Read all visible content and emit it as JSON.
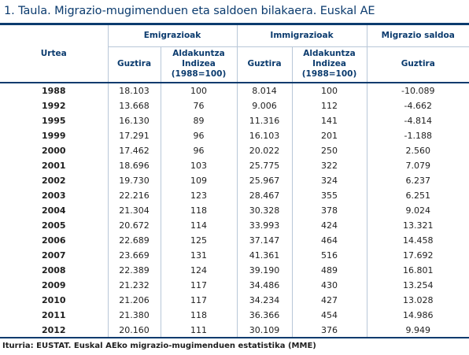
{
  "title": "1. Taula. Migrazio-mugimenduen eta saldoen bilakaera. Euskal AE",
  "header": {
    "urtea": "Urtea",
    "emigrazioak": "Emigrazioak",
    "immigrazioak": "Immigrazioak",
    "saldoa": "Migrazio saldoa",
    "guztira": "Guztira",
    "aldakuntza_1": "Aldakuntza",
    "aldakuntza_2": "Indizea",
    "aldakuntza_3": "(1988=100)"
  },
  "rows": [
    {
      "year": "1988",
      "emig": "18.103",
      "emig_idx": "100",
      "immig": "8.014",
      "immig_idx": "100",
      "saldo": "-10.089"
    },
    {
      "year": "1992",
      "emig": "13.668",
      "emig_idx": "76",
      "immig": "9.006",
      "immig_idx": "112",
      "saldo": "-4.662"
    },
    {
      "year": "1995",
      "emig": "16.130",
      "emig_idx": "89",
      "immig": "11.316",
      "immig_idx": "141",
      "saldo": "-4.814"
    },
    {
      "year": "1999",
      "emig": "17.291",
      "emig_idx": "96",
      "immig": "16.103",
      "immig_idx": "201",
      "saldo": "-1.188"
    },
    {
      "year": "2000",
      "emig": "17.462",
      "emig_idx": "96",
      "immig": "20.022",
      "immig_idx": "250",
      "saldo": "2.560"
    },
    {
      "year": "2001",
      "emig": "18.696",
      "emig_idx": "103",
      "immig": "25.775",
      "immig_idx": "322",
      "saldo": "7.079"
    },
    {
      "year": "2002",
      "emig": "19.730",
      "emig_idx": "109",
      "immig": "25.967",
      "immig_idx": "324",
      "saldo": "6.237"
    },
    {
      "year": "2003",
      "emig": "22.216",
      "emig_idx": "123",
      "immig": "28.467",
      "immig_idx": "355",
      "saldo": "6.251"
    },
    {
      "year": "2004",
      "emig": "21.304",
      "emig_idx": "118",
      "immig": "30.328",
      "immig_idx": "378",
      "saldo": "9.024"
    },
    {
      "year": "2005",
      "emig": "20.672",
      "emig_idx": "114",
      "immig": "33.993",
      "immig_idx": "424",
      "saldo": "13.321"
    },
    {
      "year": "2006",
      "emig": "22.689",
      "emig_idx": "125",
      "immig": "37.147",
      "immig_idx": "464",
      "saldo": "14.458"
    },
    {
      "year": "2007",
      "emig": "23.669",
      "emig_idx": "131",
      "immig": "41.361",
      "immig_idx": "516",
      "saldo": "17.692"
    },
    {
      "year": "2008",
      "emig": "22.389",
      "emig_idx": "124",
      "immig": "39.190",
      "immig_idx": "489",
      "saldo": "16.801"
    },
    {
      "year": "2009",
      "emig": "21.232",
      "emig_idx": "117",
      "immig": "34.486",
      "immig_idx": "430",
      "saldo": "13.254"
    },
    {
      "year": "2010",
      "emig": "21.206",
      "emig_idx": "117",
      "immig": "34.234",
      "immig_idx": "427",
      "saldo": "13.028"
    },
    {
      "year": "2011",
      "emig": "21.380",
      "emig_idx": "118",
      "immig": "36.366",
      "immig_idx": "454",
      "saldo": "14.986"
    },
    {
      "year": "2012",
      "emig": "20.160",
      "emig_idx": "111",
      "immig": "30.109",
      "immig_idx": "376",
      "saldo": "9.949"
    }
  ],
  "source": "Iturria: EUSTAT. Euskal AEko migrazio-mugimenduen estatistika (MME)",
  "colors": {
    "accent": "#0b3b6e",
    "grid": "#b8c7d8",
    "text": "#1f1f1f"
  }
}
